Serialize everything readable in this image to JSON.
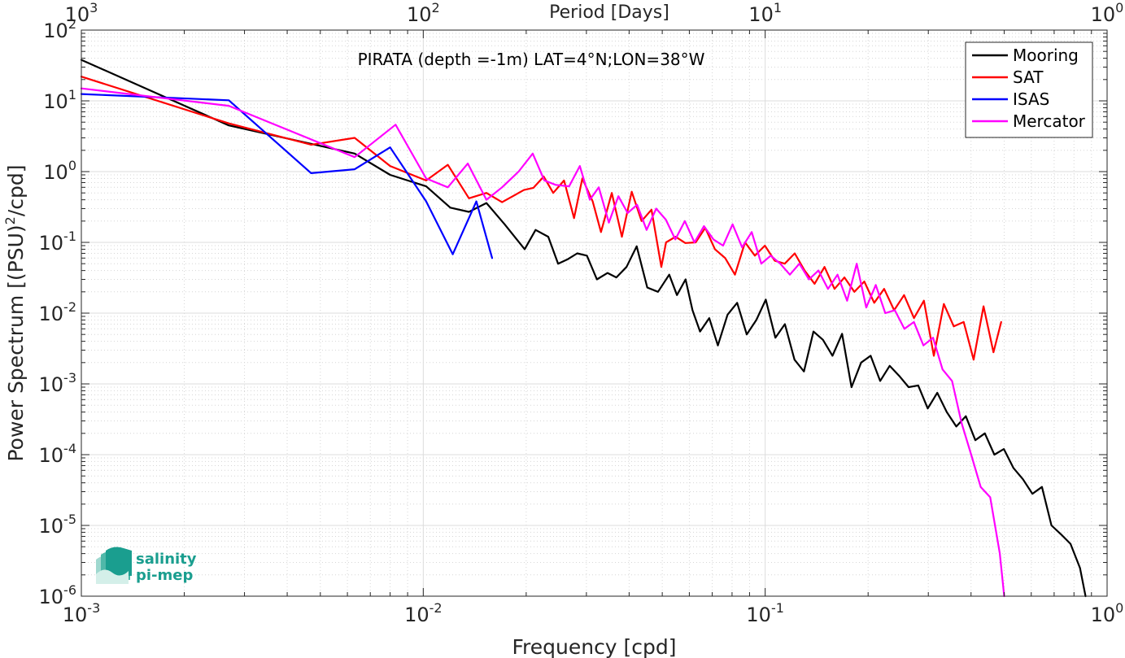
{
  "chart_data": {
    "type": "line",
    "title": "PIRATA (depth =-1m) LAT=4°N;LON=38°W",
    "xlabel": "Frequency [cpd]",
    "ylabel": "Power Spectrum [(PSU)",
    "ylabel_sup": "2",
    "ylabel_tail": "/cpd]",
    "x2label": "Period [Days]",
    "xscale": "log",
    "yscale": "log",
    "xlim": [
      0.001,
      1
    ],
    "ylim": [
      1e-06,
      100
    ],
    "grid": true,
    "legend_position": "top-right",
    "xticks": [
      0.001,
      0.01,
      0.1,
      1
    ],
    "xtick_labels": [
      "10",
      "10",
      "10",
      "10"
    ],
    "xtick_exps": [
      "-3",
      "-2",
      "-1",
      "0"
    ],
    "x2tick_labels": [
      "10",
      "10",
      "10",
      "10"
    ],
    "x2tick_exps": [
      "3",
      "2",
      "1",
      "0"
    ],
    "yticks": [
      1e-06,
      1e-05,
      0.0001,
      0.001,
      0.01,
      0.1,
      1,
      10,
      100
    ],
    "ytick_labels": [
      "10",
      "10",
      "10",
      "10",
      "10",
      "10",
      "10",
      "10",
      "10"
    ],
    "ytick_exps": [
      "-6",
      "-5",
      "-4",
      "-3",
      "-2",
      "-1",
      "0",
      "1",
      "2"
    ],
    "series": [
      {
        "name": "Mooring",
        "color": "#000000",
        "x": [
          0.001,
          0.0027,
          0.0063,
          0.008,
          0.0102,
          0.012,
          0.0136,
          0.0153,
          0.0173,
          0.0198,
          0.0213,
          0.0232,
          0.0248,
          0.0265,
          0.0282,
          0.0301,
          0.0322,
          0.0346,
          0.0367,
          0.0393,
          0.0421,
          0.0452,
          0.0486,
          0.0524,
          0.0552,
          0.0585,
          0.0613,
          0.0645,
          0.0686,
          0.0727,
          0.0776,
          0.0828,
          0.0883,
          0.0942,
          0.1004,
          0.1071,
          0.1142,
          0.1218,
          0.1298,
          0.1384,
          0.1476,
          0.1573,
          0.1678,
          0.1789,
          0.1908,
          0.2034,
          0.2169,
          0.2312,
          0.2466,
          0.2628,
          0.2803,
          0.2988,
          0.3186,
          0.3397,
          0.3622,
          0.3862,
          0.4117,
          0.439,
          0.4681,
          0.499,
          0.5321,
          0.5673,
          0.6048,
          0.6449,
          0.6875,
          0.7331,
          0.7815,
          0.8333,
          0.865
        ],
        "y": [
          38,
          4.5,
          1.8,
          0.9,
          0.62,
          0.31,
          0.27,
          0.36,
          0.18,
          0.08,
          0.15,
          0.12,
          0.05,
          0.058,
          0.07,
          0.065,
          0.03,
          0.037,
          0.032,
          0.045,
          0.088,
          0.023,
          0.02,
          0.035,
          0.018,
          0.03,
          0.011,
          0.0055,
          0.0085,
          0.0035,
          0.0095,
          0.014,
          0.005,
          0.008,
          0.0155,
          0.0045,
          0.007,
          0.0022,
          0.0015,
          0.0055,
          0.0042,
          0.0025,
          0.0051,
          0.0009,
          0.002,
          0.0025,
          0.0011,
          0.0018,
          0.0013,
          0.0009,
          0.00095,
          0.00045,
          0.00075,
          0.0004,
          0.00025,
          0.00035,
          0.00016,
          0.0002,
          0.0001,
          0.00012,
          6.5e-05,
          4.5e-05,
          2.8e-05,
          3.5e-05,
          1e-05,
          7.5e-06,
          5.5e-06,
          2.5e-06,
          1e-06
        ]
      },
      {
        "name": "SAT",
        "color": "#ff0000",
        "x": [
          0.001,
          0.0027,
          0.0047,
          0.0063,
          0.008,
          0.0102,
          0.0118,
          0.0136,
          0.0153,
          0.017,
          0.0197,
          0.021,
          0.0225,
          0.024,
          0.0258,
          0.0276,
          0.0292,
          0.0313,
          0.0331,
          0.0356,
          0.0381,
          0.0407,
          0.0435,
          0.0465,
          0.0497,
          0.0513,
          0.0547,
          0.0584,
          0.0626,
          0.0668,
          0.0713,
          0.0764,
          0.0816,
          0.0873,
          0.0933,
          0.0998,
          0.1067,
          0.1141,
          0.122,
          0.1304,
          0.1395,
          0.1491,
          0.1595,
          0.1705,
          0.1823,
          0.1949,
          0.2084,
          0.2228,
          0.2383,
          0.2548,
          0.2724,
          0.2913,
          0.3114,
          0.333,
          0.356,
          0.3807,
          0.4069,
          0.4352,
          0.4651,
          0.49
        ],
        "y": [
          22,
          4.8,
          2.4,
          3.0,
          1.2,
          0.75,
          1.25,
          0.42,
          0.5,
          0.37,
          0.55,
          0.59,
          0.85,
          0.5,
          0.75,
          0.22,
          0.8,
          0.38,
          0.14,
          0.5,
          0.12,
          0.52,
          0.2,
          0.29,
          0.045,
          0.1,
          0.12,
          0.098,
          0.1,
          0.16,
          0.08,
          0.06,
          0.035,
          0.1,
          0.065,
          0.09,
          0.055,
          0.05,
          0.07,
          0.04,
          0.026,
          0.045,
          0.022,
          0.032,
          0.02,
          0.028,
          0.014,
          0.022,
          0.011,
          0.018,
          0.0085,
          0.015,
          0.0025,
          0.0135,
          0.0065,
          0.0075,
          0.0022,
          0.0125,
          0.0028,
          0.0075
        ]
      },
      {
        "name": "ISAS",
        "color": "#0000ff",
        "x": [
          0.001,
          0.0027,
          0.0047,
          0.0063,
          0.008,
          0.0102,
          0.0122,
          0.0143,
          0.0159
        ],
        "y": [
          12.5,
          10.2,
          0.95,
          1.08,
          2.2,
          0.38,
          0.068,
          0.38,
          0.06
        ]
      },
      {
        "name": "Mercator",
        "color": "#ff00ff",
        "x": [
          0.001,
          0.0027,
          0.0063,
          0.0083,
          0.0102,
          0.0118,
          0.0135,
          0.0153,
          0.017,
          0.019,
          0.0209,
          0.0226,
          0.0244,
          0.0267,
          0.0287,
          0.0307,
          0.0326,
          0.0349,
          0.0372,
          0.0396,
          0.0422,
          0.045,
          0.048,
          0.0512,
          0.0546,
          0.0582,
          0.0621,
          0.0662,
          0.0706,
          0.0753,
          0.0803,
          0.0856,
          0.0913,
          0.0974,
          0.1038,
          0.1107,
          0.1181,
          0.1259,
          0.1343,
          0.1432,
          0.1527,
          0.1628,
          0.1736,
          0.1852,
          0.1975,
          0.2106,
          0.2245,
          0.2394,
          0.2553,
          0.2723,
          0.2903,
          0.3096,
          0.3301,
          0.3521,
          0.3754,
          0.4003,
          0.4269,
          0.4552,
          0.4854,
          0.5
        ],
        "y": [
          15,
          8.5,
          1.6,
          4.6,
          0.8,
          0.6,
          1.3,
          0.4,
          0.6,
          1.0,
          1.8,
          0.75,
          0.65,
          0.62,
          1.2,
          0.4,
          0.6,
          0.19,
          0.45,
          0.26,
          0.34,
          0.15,
          0.3,
          0.21,
          0.11,
          0.2,
          0.1,
          0.17,
          0.11,
          0.09,
          0.18,
          0.085,
          0.14,
          0.05,
          0.065,
          0.05,
          0.035,
          0.05,
          0.03,
          0.04,
          0.022,
          0.035,
          0.015,
          0.05,
          0.012,
          0.025,
          0.01,
          0.011,
          0.006,
          0.0075,
          0.0035,
          0.0045,
          0.0016,
          0.0011,
          0.00028,
          0.0001,
          3.5e-05,
          2.5e-05,
          4e-06,
          1e-06
        ]
      }
    ]
  },
  "logo": {
    "line1": "salinity",
    "line2": "pi-mep",
    "color": "#1a9e8f"
  }
}
